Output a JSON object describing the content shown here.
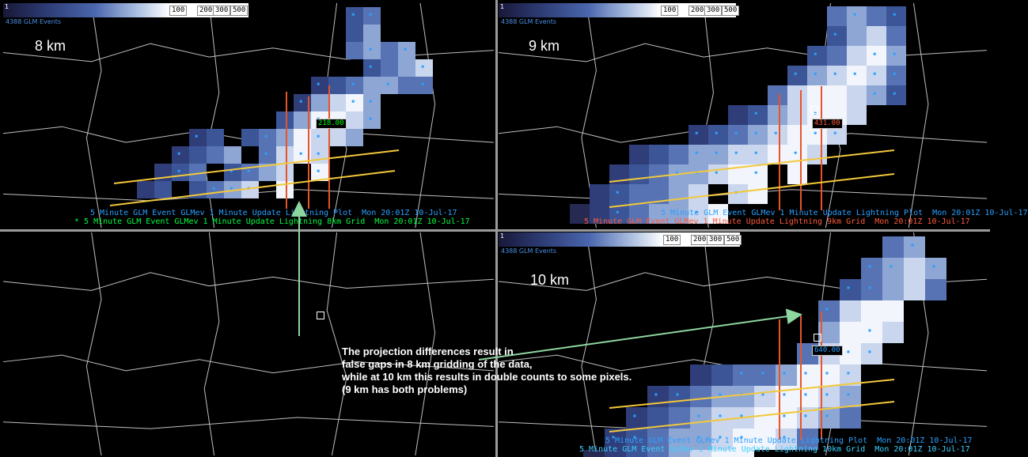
{
  "panels": {
    "tl": {
      "res": "8 km",
      "sub": "4388 GLM Events",
      "vlabel": "218.00",
      "ticks": [
        "100",
        "200",
        "300",
        "500"
      ],
      "leftnum": "1",
      "legend1": "5 Minute GLM Event GLMev 1 Minute Update Lightning Plot  Mon 20:01Z 10-Jul-17",
      "legend2": "* 5 Minute GLM Event GLMev 1 Minute Update Lightning 8km Grid  Mon 20:01Z 10-Jul-17"
    },
    "tr": {
      "res": "9 km",
      "sub": "4388 GLM Events",
      "vlabel": "431.00",
      "ticks": [
        "100",
        "200",
        "300",
        "500"
      ],
      "leftnum": "1",
      "legend1": "5 Minute GLM Event GLMev 1 Minute Update Lightning Plot  Mon 20:01Z 10-Jul-17",
      "legend2": "5 Minute GLM Event GLMev 1 Minute Update Lightning 9km Grid  Mon 20:01Z 10-Jul-17"
    },
    "br": {
      "res": "10 km",
      "sub": "4388 GLM Events",
      "vlabel": "640.00",
      "ticks": [
        "100",
        "200",
        "300",
        "500"
      ],
      "leftnum": "1",
      "legend1": "5 Minute GLM Event GLMev 1 Minute Update Lightning Plot  Mon 20:01Z 10-Jul-17",
      "legend2": "5 Minute GLM Event GLMev 1 Minute Update Lightning 10km Grid  Mon 20:01Z 10-Jul-17"
    }
  },
  "annotation": "The projection differences result in\n false gaps in 8 km gridding of the data,\nwhile at 10 km this results in double counts to some pixels.\n(9 km has both problems)",
  "colors": {
    "legend_cyan": "#2aa0ff",
    "legend_green": "#00ff40",
    "legend_red": "#ff5a3a",
    "yellow": "#f2c83a",
    "orange": "#e8542a",
    "arrow": "#8ed6a0"
  }
}
